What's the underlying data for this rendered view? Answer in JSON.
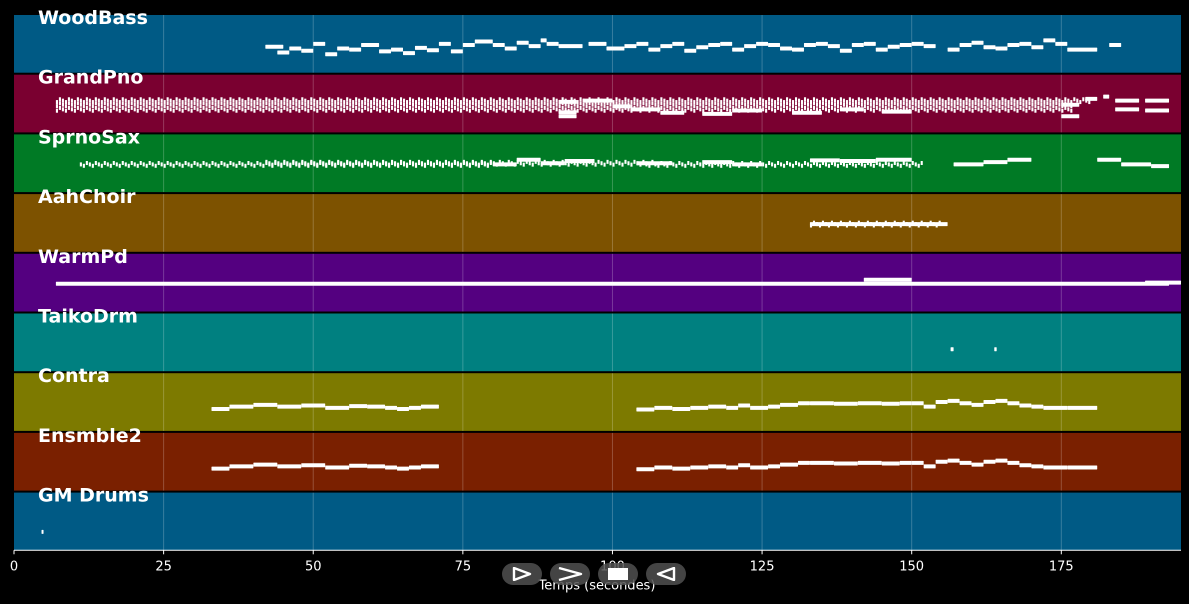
{
  "chart_data": {
    "type": "piano-roll",
    "xlabel": "Temps (secondes)",
    "xlim": [
      0,
      195
    ],
    "xticks": [
      0,
      25,
      50,
      75,
      100,
      125,
      150,
      175
    ],
    "grid": true,
    "tracks": [
      {
        "name": "WoodBass",
        "color": "#005a85",
        "notes": [
          [
            42,
            45,
            0.55
          ],
          [
            44,
            46,
            0.65
          ],
          [
            46,
            48,
            0.58
          ],
          [
            48,
            50,
            0.62
          ],
          [
            50,
            52,
            0.5
          ],
          [
            52,
            54,
            0.68
          ],
          [
            54,
            56,
            0.58
          ],
          [
            56,
            58,
            0.6
          ],
          [
            58,
            61,
            0.52
          ],
          [
            61,
            63,
            0.63
          ],
          [
            63,
            65,
            0.6
          ],
          [
            65,
            67,
            0.66
          ],
          [
            67,
            69,
            0.57
          ],
          [
            69,
            71,
            0.61
          ],
          [
            71,
            73,
            0.5
          ],
          [
            73,
            75,
            0.63
          ],
          [
            75,
            77,
            0.52
          ],
          [
            77,
            80,
            0.46
          ],
          [
            80,
            82,
            0.52
          ],
          [
            82,
            84,
            0.58
          ],
          [
            84,
            86,
            0.48
          ],
          [
            86,
            88,
            0.54
          ],
          [
            88,
            89,
            0.44
          ],
          [
            89,
            91,
            0.5
          ],
          [
            91,
            95,
            0.54
          ],
          [
            96,
            99,
            0.5
          ],
          [
            99,
            102,
            0.58
          ],
          [
            102,
            104,
            0.54
          ],
          [
            104,
            106,
            0.5
          ],
          [
            106,
            108,
            0.6
          ],
          [
            108,
            110,
            0.54
          ],
          [
            110,
            112,
            0.5
          ],
          [
            112,
            114,
            0.62
          ],
          [
            114,
            116,
            0.56
          ],
          [
            116,
            118,
            0.52
          ],
          [
            118,
            120,
            0.5
          ],
          [
            120,
            122,
            0.6
          ],
          [
            122,
            124,
            0.54
          ],
          [
            124,
            126,
            0.5
          ],
          [
            126,
            128,
            0.52
          ],
          [
            128,
            130,
            0.58
          ],
          [
            130,
            132,
            0.6
          ],
          [
            132,
            134,
            0.52
          ],
          [
            134,
            136,
            0.5
          ],
          [
            136,
            138,
            0.54
          ],
          [
            138,
            140,
            0.62
          ],
          [
            140,
            142,
            0.52
          ],
          [
            142,
            144,
            0.5
          ],
          [
            144,
            146,
            0.6
          ],
          [
            146,
            148,
            0.55
          ],
          [
            148,
            150,
            0.52
          ],
          [
            150,
            152,
            0.5
          ],
          [
            152,
            154,
            0.54
          ],
          [
            156,
            158,
            0.6
          ],
          [
            158,
            160,
            0.52
          ],
          [
            160,
            162,
            0.48
          ],
          [
            162,
            164,
            0.56
          ],
          [
            164,
            166,
            0.58
          ],
          [
            166,
            168,
            0.52
          ],
          [
            168,
            170,
            0.5
          ],
          [
            170,
            172,
            0.56
          ],
          [
            172,
            174,
            0.44
          ],
          [
            174,
            176,
            0.5
          ],
          [
            176,
            181,
            0.6
          ],
          [
            183,
            185,
            0.52
          ]
        ],
        "dense": []
      },
      {
        "name": "GrandPno",
        "color": "#7a0030",
        "notes": [
          [
            91,
            94,
            0.47
          ],
          [
            91,
            94,
            0.65
          ],
          [
            91,
            94,
            0.72
          ],
          [
            95,
            100,
            0.45
          ],
          [
            100,
            103,
            0.55
          ],
          [
            103,
            108,
            0.6
          ],
          [
            108,
            112,
            0.66
          ],
          [
            115,
            120,
            0.68
          ],
          [
            120,
            125,
            0.62
          ],
          [
            130,
            135,
            0.66
          ],
          [
            138,
            142,
            0.6
          ],
          [
            145,
            150,
            0.64
          ],
          [
            175,
            178,
            0.52
          ],
          [
            175,
            178,
            0.72
          ],
          [
            179,
            181,
            0.42
          ],
          [
            182,
            183,
            0.38
          ],
          [
            184,
            188,
            0.45
          ],
          [
            184,
            188,
            0.6
          ],
          [
            189,
            193,
            0.45
          ],
          [
            189,
            193,
            0.62
          ]
        ],
        "dense": [
          [
            7,
            0.45,
            180
          ],
          [
            7,
            0.52,
            177
          ],
          [
            7,
            0.6,
            177
          ]
        ]
      },
      {
        "name": "SprnoSax",
        "color": "#007a25",
        "notes": [
          [
            80,
            84,
            0.52
          ],
          [
            84,
            88,
            0.44
          ],
          [
            88,
            92,
            0.5
          ],
          [
            92,
            97,
            0.46
          ],
          [
            104,
            110,
            0.5
          ],
          [
            115,
            120,
            0.48
          ],
          [
            120,
            125,
            0.52
          ],
          [
            133,
            138,
            0.45
          ],
          [
            138,
            144,
            0.46
          ],
          [
            144,
            150,
            0.44
          ],
          [
            157,
            162,
            0.52
          ],
          [
            162,
            166,
            0.48
          ],
          [
            166,
            170,
            0.44
          ],
          [
            181,
            185,
            0.44
          ],
          [
            185,
            190,
            0.52
          ],
          [
            190,
            193,
            0.55
          ]
        ],
        "dense": [
          [
            11,
            0.52,
            80
          ],
          [
            42,
            0.5,
            107
          ],
          [
            105,
            0.52,
            152
          ]
        ]
      },
      {
        "name": "AahChoir",
        "color": "#7d5200",
        "notes": [
          [
            133,
            156,
            0.52
          ]
        ],
        "dense": [
          [
            133,
            0.52,
            155
          ]
        ]
      },
      {
        "name": "WarmPd",
        "color": "#540080",
        "notes": [
          [
            7,
            193,
            0.52
          ],
          [
            142,
            150,
            0.45
          ],
          [
            189,
            195,
            0.5
          ]
        ],
        "dense": []
      },
      {
        "name": "TaikoDrm",
        "color": "#008080",
        "notes": [
          [
            156.5,
            157,
            0.62
          ],
          [
            163.8,
            164.2,
            0.62
          ]
        ],
        "dense": []
      },
      {
        "name": "Contra",
        "color": "#7d7a00",
        "notes": [
          [
            33,
            36,
            0.62
          ],
          [
            36,
            40,
            0.58
          ],
          [
            40,
            44,
            0.55
          ],
          [
            44,
            48,
            0.58
          ],
          [
            48,
            52,
            0.56
          ],
          [
            52,
            56,
            0.6
          ],
          [
            56,
            59,
            0.57
          ],
          [
            59,
            62,
            0.58
          ],
          [
            62,
            64,
            0.6
          ],
          [
            64,
            66,
            0.62
          ],
          [
            66,
            68,
            0.6
          ],
          [
            68,
            71,
            0.58
          ],
          [
            104,
            107,
            0.63
          ],
          [
            107,
            110,
            0.6
          ],
          [
            110,
            113,
            0.62
          ],
          [
            113,
            116,
            0.6
          ],
          [
            116,
            119,
            0.58
          ],
          [
            119,
            121,
            0.6
          ],
          [
            121,
            123,
            0.56
          ],
          [
            123,
            126,
            0.6
          ],
          [
            126,
            128,
            0.58
          ],
          [
            128,
            131,
            0.55
          ],
          [
            131,
            133,
            0.52
          ],
          [
            133,
            137,
            0.52
          ],
          [
            137,
            141,
            0.53
          ],
          [
            141,
            145,
            0.52
          ],
          [
            145,
            148,
            0.53
          ],
          [
            148,
            150,
            0.52
          ],
          [
            150,
            152,
            0.52
          ],
          [
            152,
            154,
            0.58
          ],
          [
            154,
            156,
            0.5
          ],
          [
            156,
            158,
            0.48
          ],
          [
            158,
            160,
            0.52
          ],
          [
            160,
            162,
            0.55
          ],
          [
            162,
            164,
            0.5
          ],
          [
            164,
            166,
            0.48
          ],
          [
            166,
            168,
            0.52
          ],
          [
            168,
            170,
            0.56
          ],
          [
            170,
            172,
            0.58
          ],
          [
            172,
            176,
            0.6
          ],
          [
            176,
            181,
            0.6
          ]
        ],
        "dense": []
      },
      {
        "name": "Ensmble2",
        "color": "#7a2000",
        "notes": [
          [
            33,
            36,
            0.62
          ],
          [
            36,
            40,
            0.58
          ],
          [
            40,
            44,
            0.55
          ],
          [
            44,
            48,
            0.58
          ],
          [
            48,
            52,
            0.56
          ],
          [
            52,
            56,
            0.6
          ],
          [
            56,
            59,
            0.57
          ],
          [
            59,
            62,
            0.58
          ],
          [
            62,
            64,
            0.6
          ],
          [
            64,
            66,
            0.62
          ],
          [
            66,
            68,
            0.6
          ],
          [
            68,
            71,
            0.58
          ],
          [
            104,
            107,
            0.63
          ],
          [
            107,
            110,
            0.6
          ],
          [
            110,
            113,
            0.62
          ],
          [
            113,
            116,
            0.6
          ],
          [
            116,
            119,
            0.58
          ],
          [
            119,
            121,
            0.6
          ],
          [
            121,
            123,
            0.56
          ],
          [
            123,
            126,
            0.6
          ],
          [
            126,
            128,
            0.58
          ],
          [
            128,
            131,
            0.55
          ],
          [
            131,
            133,
            0.52
          ],
          [
            133,
            137,
            0.52
          ],
          [
            137,
            141,
            0.53
          ],
          [
            141,
            145,
            0.52
          ],
          [
            145,
            148,
            0.53
          ],
          [
            148,
            150,
            0.52
          ],
          [
            150,
            152,
            0.52
          ],
          [
            152,
            154,
            0.58
          ],
          [
            154,
            156,
            0.5
          ],
          [
            156,
            158,
            0.48
          ],
          [
            158,
            160,
            0.52
          ],
          [
            160,
            162,
            0.55
          ],
          [
            162,
            164,
            0.5
          ],
          [
            164,
            166,
            0.48
          ],
          [
            166,
            168,
            0.52
          ],
          [
            168,
            170,
            0.56
          ],
          [
            170,
            172,
            0.58
          ],
          [
            172,
            176,
            0.6
          ],
          [
            176,
            181,
            0.6
          ]
        ],
        "dense": []
      },
      {
        "name": "GM Drums",
        "color": "#005a85",
        "notes": [
          [
            4.6,
            4.9,
            0.68
          ]
        ],
        "dense": []
      }
    ]
  },
  "controls": [
    {
      "name": "rewind-button",
      "icon": "rewind-icon"
    },
    {
      "name": "forward-button",
      "icon": "forward-icon"
    },
    {
      "name": "stop-button",
      "icon": "stop-icon"
    },
    {
      "name": "back-button",
      "icon": "back-icon"
    }
  ]
}
